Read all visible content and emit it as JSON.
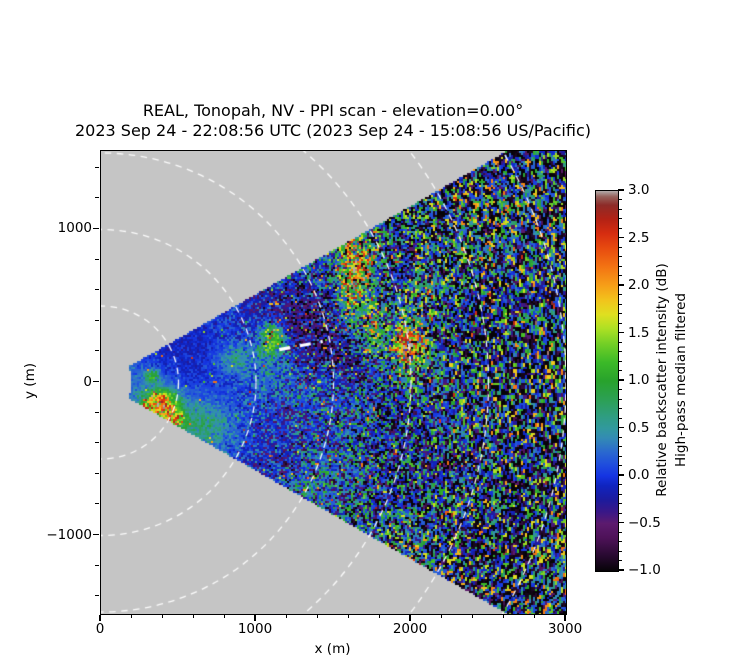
{
  "title": {
    "line1": "REAL, Tonopah, NV - PPI scan - elevation=0.00°",
    "line2": "2023 Sep 24 - 22:08:56 UTC (2023 Sep 24 - 15:08:56 US/Pacific)"
  },
  "colors": {
    "background": "#ffffff",
    "axes_background": "#c5c5c5",
    "ring_color": "#ffffff",
    "annotation_color": "#ffffff",
    "spine_color": "#000000"
  },
  "chart_data": {
    "type": "heatmap",
    "subtype": "ppi-polar-lidar-scan",
    "xlabel": "x (m)",
    "ylabel": "y (m)",
    "xlim": [
      0,
      3000
    ],
    "ylim": [
      -1513,
      1513
    ],
    "x_ticks": {
      "major": [
        {
          "value": 0,
          "label": "0"
        },
        {
          "value": 1000,
          "label": "1000"
        },
        {
          "value": 2000,
          "label": "2000"
        },
        {
          "value": 3000,
          "label": "3000"
        }
      ],
      "minor_step": 200
    },
    "y_ticks": {
      "major": [
        {
          "value": 1000,
          "label": "1000"
        },
        {
          "value": 0,
          "label": "0"
        },
        {
          "value": -1000,
          "label": "−1000"
        }
      ],
      "minor_step": 200
    },
    "scan": {
      "center": [
        0,
        0
      ],
      "range_min_m": 200,
      "range_max_m": 4200,
      "azimuth_min_deg": -30,
      "azimuth_max_deg": 30,
      "beam_step_deg": 0.45,
      "gate_step_m": 14,
      "base_level_db": 0.1,
      "near_noise_amp_db": 0.16,
      "far_noise_amp_db": 1.55,
      "noise_growth_start_m": 750,
      "noise_growth_per_m": 0.00075
    },
    "range_rings": {
      "radii_m": [
        500,
        1000,
        1500,
        2000,
        2500,
        3000
      ],
      "style": "dashed",
      "dash": [
        6.5,
        5.5
      ],
      "line_width": 1.3
    },
    "annotation_line": {
      "x1": 1150,
      "y1": 215,
      "x2": 1430,
      "y2": 268,
      "dash": [
        11,
        10
      ],
      "line_width": 3.2
    },
    "features": [
      {
        "x": 380,
        "y": -140,
        "rx": 75,
        "ry": 60,
        "amp": 2.3
      },
      {
        "x": 465,
        "y": -240,
        "rx": 50,
        "ry": 40,
        "amp": 1.6
      },
      {
        "x": 330,
        "y": 40,
        "rx": 35,
        "ry": 30,
        "amp": 0.9
      },
      {
        "x": 1105,
        "y": 290,
        "rx": 55,
        "ry": 80,
        "amp": 1.5
      },
      {
        "x": 1640,
        "y": 780,
        "rx": 90,
        "ry": 130,
        "amp": 1.9
      },
      {
        "x": 1600,
        "y": 500,
        "rx": 50,
        "ry": 120,
        "amp": 1.1
      },
      {
        "x": 1740,
        "y": 370,
        "rx": 45,
        "ry": 130,
        "amp": 1.1
      },
      {
        "x": 1985,
        "y": 265,
        "rx": 65,
        "ry": 110,
        "amp": 2.1
      },
      {
        "x": 2080,
        "y": 640,
        "rx": 55,
        "ry": 95,
        "amp": 0.8
      },
      {
        "x": 870,
        "y": 150,
        "rx": 90,
        "ry": 65,
        "amp": 0.45
      },
      {
        "x": 650,
        "y": -280,
        "rx": 130,
        "ry": 95,
        "amp": 0.4
      },
      {
        "x": 1260,
        "y": 430,
        "rx": 230,
        "ry": 175,
        "amp": -0.55
      },
      {
        "x": 1500,
        "y": 190,
        "rx": 180,
        "ry": 130,
        "amp": -0.4
      },
      {
        "x": 2500,
        "y": -400,
        "rx": 320,
        "ry": 260,
        "amp": -0.25
      }
    ],
    "colormap": {
      "vmin": -1.0,
      "vmax": 3.0,
      "stops": [
        [
          -1.0,
          "#060307"
        ],
        [
          -0.85,
          "#26092e"
        ],
        [
          -0.65,
          "#4e1259"
        ],
        [
          -0.5,
          "#5c1a6e"
        ],
        [
          -0.38,
          "#3a1787"
        ],
        [
          -0.25,
          "#1c1b9e"
        ],
        [
          -0.1,
          "#0f24c0"
        ],
        [
          0.0,
          "#1534e2"
        ],
        [
          0.12,
          "#1f4ddd"
        ],
        [
          0.25,
          "#2a68cf"
        ],
        [
          0.4,
          "#338bb4"
        ],
        [
          0.5,
          "#31999e"
        ],
        [
          0.62,
          "#2f9d83"
        ],
        [
          0.8,
          "#2ca055"
        ],
        [
          1.0,
          "#28a22c"
        ],
        [
          1.2,
          "#3cba28"
        ],
        [
          1.4,
          "#76d026"
        ],
        [
          1.55,
          "#ace024"
        ],
        [
          1.7,
          "#dfdf20"
        ],
        [
          1.85,
          "#f2c31c"
        ],
        [
          2.0,
          "#f6a018"
        ],
        [
          2.2,
          "#f37413"
        ],
        [
          2.4,
          "#e74a0f"
        ],
        [
          2.55,
          "#d62d10"
        ],
        [
          2.7,
          "#b42215"
        ],
        [
          2.85,
          "#8d2b28"
        ],
        [
          2.94,
          "#96625c"
        ],
        [
          3.0,
          "#b2abaa"
        ]
      ]
    },
    "colorbar": {
      "vmin": -1.0,
      "vmax": 3.0,
      "ticks": [
        {
          "value": 3.0,
          "label": "3.0"
        },
        {
          "value": 2.5,
          "label": "2.5"
        },
        {
          "value": 2.0,
          "label": "2.0"
        },
        {
          "value": 1.5,
          "label": "1.5"
        },
        {
          "value": 1.0,
          "label": "1.0"
        },
        {
          "value": 0.5,
          "label": "0.5"
        },
        {
          "value": 0.0,
          "label": "0.0"
        },
        {
          "value": -0.5,
          "label": "−0.5"
        },
        {
          "value": -1.0,
          "label": "−1.0"
        }
      ],
      "minor_step": 0.1,
      "label_line1": "Relative backscatter intensity (dB)",
      "label_line2": "High-pass median filtered"
    }
  }
}
